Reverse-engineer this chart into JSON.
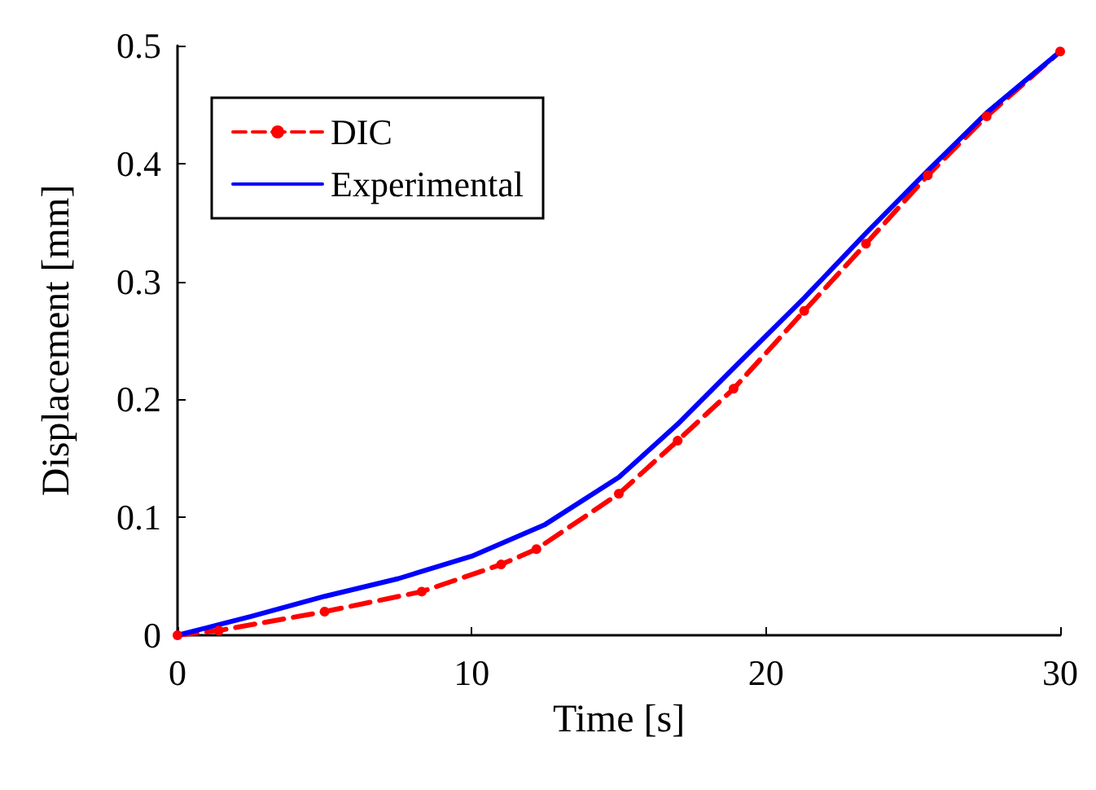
{
  "chart_data": {
    "type": "line",
    "xlabel": "Time [s]",
    "ylabel": "Displacement [mm]",
    "xlim": [
      0,
      30
    ],
    "xticks": [
      0,
      10,
      20,
      30
    ],
    "ylim": [
      0,
      0.5
    ],
    "yticks": [
      0,
      0.1,
      0.2,
      0.3,
      0.4,
      0.5
    ],
    "grid": false,
    "legend": "top left",
    "series": [
      {
        "name": "DIC",
        "color": "#ff0000",
        "line_style": "dashed",
        "marker": "circle",
        "x": [
          0,
          1.4,
          5,
          8.3,
          11,
          12.2,
          15,
          17,
          18.9,
          21.3,
          23.4,
          25.5,
          27.5,
          30
        ],
        "values": [
          0,
          0.004,
          0.02,
          0.037,
          0.06,
          0.073,
          0.12,
          0.165,
          0.209,
          0.275,
          0.332,
          0.39,
          0.44,
          0.495
        ]
      },
      {
        "name": "Experimental",
        "color": "#0000ff",
        "line_style": "solid",
        "marker": "none",
        "x": [
          0,
          2.5,
          5,
          7.5,
          10,
          12.5,
          15,
          17,
          19,
          21.3,
          23.4,
          25.5,
          27.5,
          30
        ],
        "values": [
          0,
          0.016,
          0.033,
          0.048,
          0.067,
          0.094,
          0.134,
          0.179,
          0.229,
          0.286,
          0.341,
          0.394,
          0.443,
          0.495
        ]
      }
    ]
  }
}
